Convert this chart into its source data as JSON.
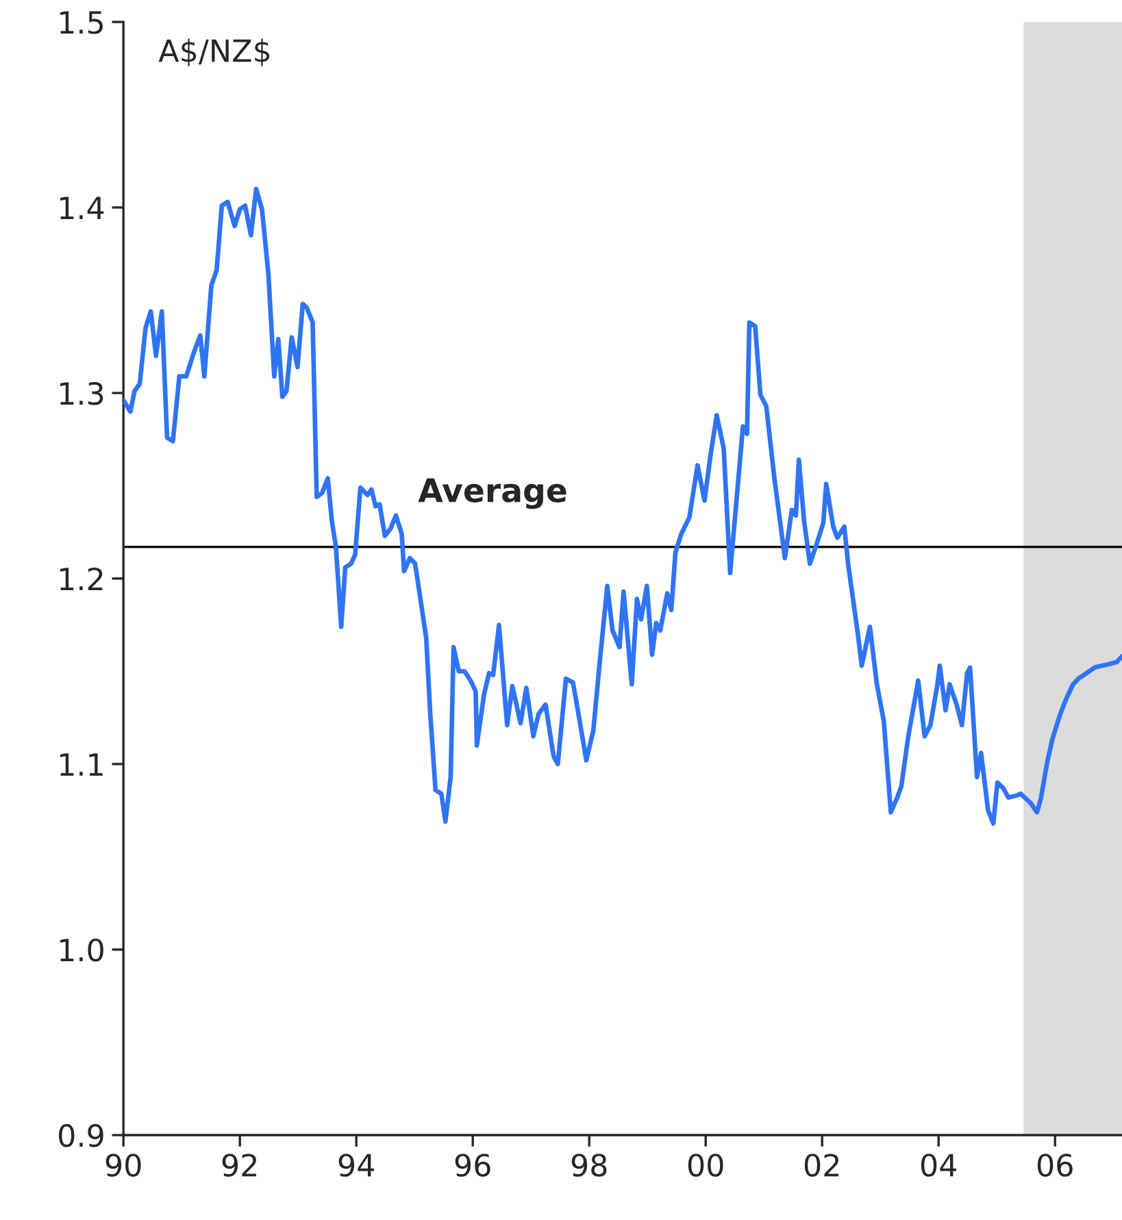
{
  "chart_data": {
    "type": "line",
    "x": [
      1990.0,
      1990.12,
      1990.19,
      1990.28,
      1990.38,
      1990.47,
      1990.56,
      1990.66,
      1990.75,
      1990.85,
      1990.96,
      1991.08,
      1991.2,
      1991.32,
      1991.39,
      1991.51,
      1991.6,
      1991.69,
      1991.79,
      1991.91,
      1992.0,
      1992.09,
      1992.19,
      1992.28,
      1992.38,
      1992.49,
      1992.59,
      1992.66,
      1992.73,
      1992.8,
      1992.89,
      1992.99,
      1993.08,
      1993.15,
      1993.25,
      1993.32,
      1993.41,
      1993.51,
      1993.58,
      1993.65,
      1993.74,
      1993.81,
      1993.91,
      1993.98,
      1994.07,
      1994.19,
      1994.26,
      1994.33,
      1994.4,
      1994.49,
      1994.59,
      1994.68,
      1994.78,
      1994.82,
      1994.92,
      1995.01,
      1995.11,
      1995.2,
      1995.27,
      1995.36,
      1995.46,
      1995.53,
      1995.62,
      1995.67,
      1995.76,
      1995.86,
      1995.98,
      1996.05,
      1996.07,
      1996.19,
      1996.28,
      1996.35,
      1996.45,
      1996.59,
      1996.68,
      1996.82,
      1996.92,
      1997.04,
      1997.13,
      1997.25,
      1997.39,
      1997.46,
      1997.6,
      1997.72,
      1997.81,
      1997.95,
      1998.07,
      1998.19,
      1998.31,
      1998.4,
      1998.52,
      1998.59,
      1998.73,
      1998.82,
      1998.89,
      1998.99,
      1999.08,
      1999.15,
      1999.22,
      1999.34,
      1999.41,
      1999.48,
      1999.58,
      1999.72,
      1999.86,
      1999.98,
      2000.09,
      2000.19,
      2000.31,
      2000.42,
      2000.54,
      2000.64,
      2000.71,
      2000.75,
      2000.85,
      2000.94,
      2001.04,
      2001.18,
      2001.36,
      2001.48,
      2001.55,
      2001.6,
      2001.69,
      2001.79,
      2001.91,
      2002.02,
      2002.07,
      2002.19,
      2002.26,
      2002.38,
      2002.45,
      2002.61,
      2002.68,
      2002.82,
      2002.94,
      2003.06,
      2003.18,
      2003.29,
      2003.36,
      2003.48,
      2003.65,
      2003.76,
      2003.86,
      2003.98,
      2004.02,
      2004.12,
      2004.19,
      2004.31,
      2004.4,
      2004.49,
      2004.54,
      2004.66,
      2004.73,
      2004.85,
      2004.94,
      2005.01,
      2005.11,
      2005.2,
      2005.34,
      2005.41,
      2005.58,
      2005.69,
      2005.76,
      2005.86,
      2005.95,
      2006.09,
      2006.19,
      2006.31,
      2006.4,
      2006.54,
      2006.68,
      2006.8,
      2006.94,
      2007.06,
      2007.15
    ],
    "series": [
      {
        "color": "#2f74f5",
        "values": [
          1.296,
          1.29,
          1.301,
          1.305,
          1.335,
          1.344,
          1.32,
          1.344,
          1.276,
          1.274,
          1.309,
          1.309,
          1.321,
          1.331,
          1.309,
          1.358,
          1.366,
          1.401,
          1.403,
          1.39,
          1.399,
          1.401,
          1.385,
          1.41,
          1.399,
          1.364,
          1.309,
          1.329,
          1.298,
          1.301,
          1.33,
          1.314,
          1.348,
          1.346,
          1.338,
          1.244,
          1.246,
          1.254,
          1.231,
          1.217,
          1.174,
          1.206,
          1.208,
          1.213,
          1.249,
          1.245,
          1.248,
          1.239,
          1.24,
          1.223,
          1.227,
          1.234,
          1.224,
          1.204,
          1.211,
          1.208,
          1.187,
          1.168,
          1.127,
          1.086,
          1.084,
          1.069,
          1.093,
          1.163,
          1.15,
          1.15,
          1.144,
          1.139,
          1.11,
          1.137,
          1.149,
          1.148,
          1.175,
          1.121,
          1.142,
          1.122,
          1.141,
          1.115,
          1.127,
          1.132,
          1.104,
          1.1,
          1.146,
          1.144,
          1.128,
          1.102,
          1.118,
          1.158,
          1.196,
          1.172,
          1.163,
          1.193,
          1.143,
          1.189,
          1.178,
          1.196,
          1.159,
          1.176,
          1.172,
          1.192,
          1.183,
          1.214,
          1.224,
          1.233,
          1.261,
          1.242,
          1.268,
          1.288,
          1.27,
          1.203,
          1.246,
          1.282,
          1.278,
          1.338,
          1.336,
          1.299,
          1.293,
          1.254,
          1.211,
          1.237,
          1.234,
          1.264,
          1.231,
          1.208,
          1.219,
          1.23,
          1.251,
          1.228,
          1.222,
          1.228,
          1.207,
          1.171,
          1.153,
          1.174,
          1.143,
          1.123,
          1.074,
          1.082,
          1.088,
          1.115,
          1.145,
          1.115,
          1.121,
          1.143,
          1.153,
          1.129,
          1.143,
          1.132,
          1.121,
          1.149,
          1.152,
          1.093,
          1.106,
          1.075,
          1.068,
          1.09,
          1.087,
          1.082,
          1.083,
          1.084,
          1.079,
          1.074,
          1.082,
          1.1,
          1.113,
          1.127,
          1.135,
          1.143,
          1.146,
          1.149,
          1.152,
          1.153,
          1.154,
          1.155,
          1.158
        ]
      }
    ],
    "xlim": [
      1990,
      2007.15
    ],
    "xticks": [
      {
        "value": 1990,
        "label": "90"
      },
      {
        "value": 1992,
        "label": "92"
      },
      {
        "value": 1994,
        "label": "94"
      },
      {
        "value": 1996,
        "label": "96"
      },
      {
        "value": 1998,
        "label": "98"
      },
      {
        "value": 2000,
        "label": "00"
      },
      {
        "value": 2002,
        "label": "02"
      },
      {
        "value": 2004,
        "label": "04"
      },
      {
        "value": 2006,
        "label": "06"
      }
    ],
    "ylim": [
      0.9,
      1.5
    ],
    "yticks": [
      {
        "value": 0.9,
        "label": "0.9"
      },
      {
        "value": 1.0,
        "label": "1.0"
      },
      {
        "value": 1.1,
        "label": "1.1"
      },
      {
        "value": 1.2,
        "label": "1.2"
      },
      {
        "value": 1.3,
        "label": "1.3"
      },
      {
        "value": 1.4,
        "label": "1.4"
      },
      {
        "value": 1.5,
        "label": "1.5"
      }
    ],
    "ref_lines": [
      {
        "axis": "y",
        "value": 1.217,
        "label": "Average",
        "color": "#000000"
      }
    ],
    "bands": [
      {
        "axis": "x",
        "from": 2005.46,
        "to": 2007.15,
        "color": "#dcdcdc"
      }
    ],
    "annotations": [
      "A$/NZ$"
    ],
    "grid": false,
    "legend": false,
    "line_style": "solid",
    "marker": "none"
  }
}
